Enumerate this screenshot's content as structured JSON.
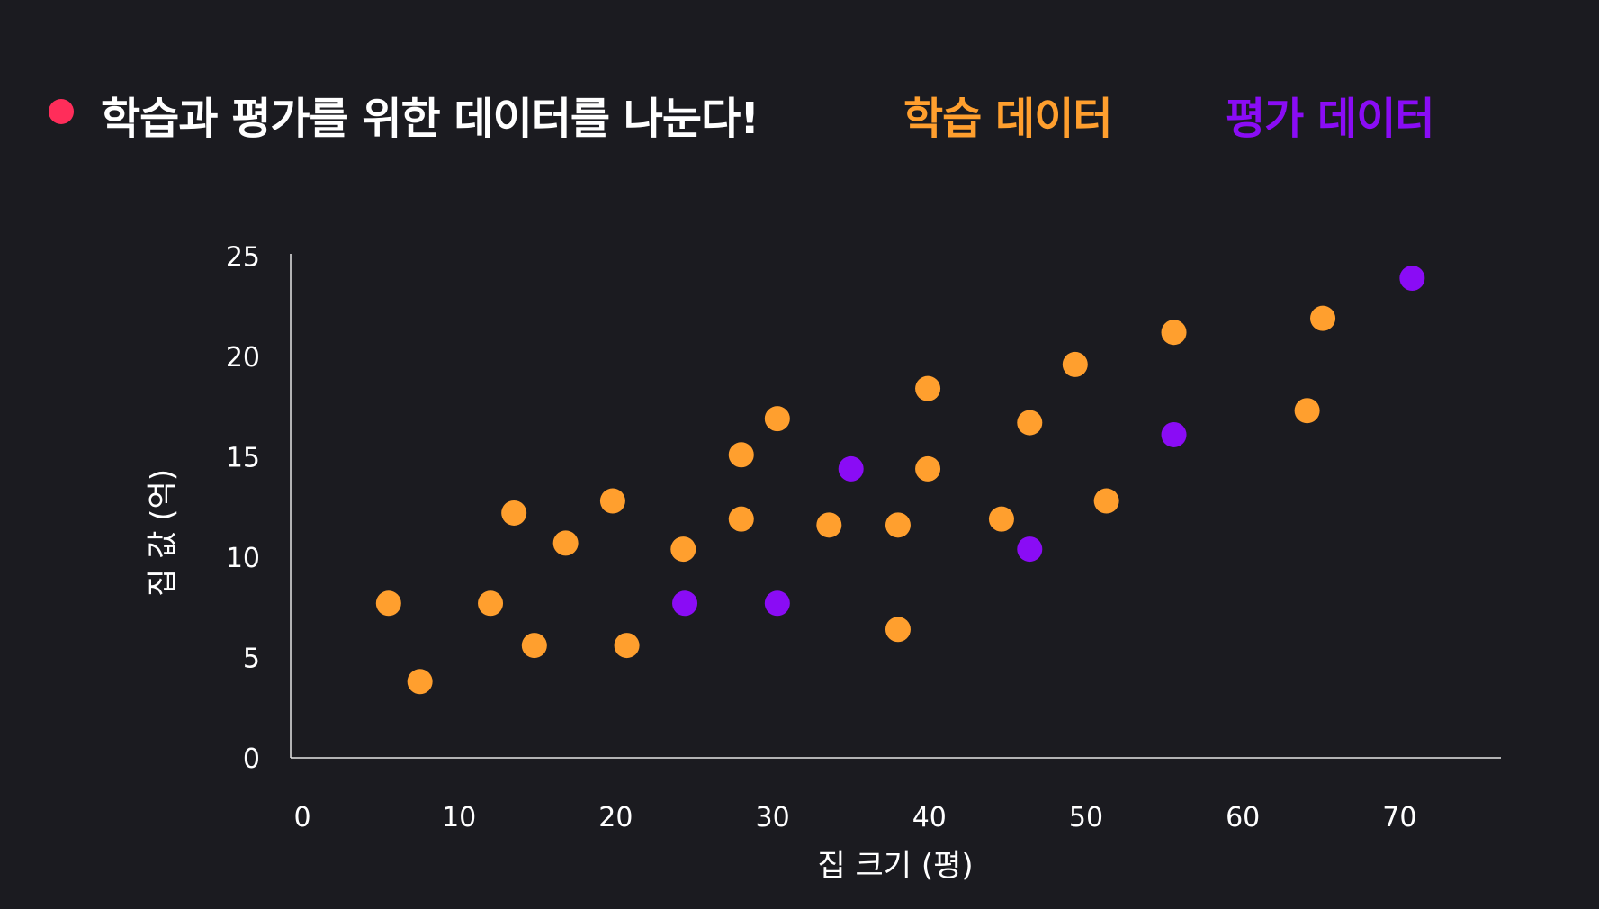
{
  "header": {
    "title": "학습과 평가를 위한 데이터를 나눈다!",
    "bullet_color": "#ff2d5a"
  },
  "chart_data": {
    "type": "scatter",
    "title": "학습과 평가를 위한 데이터를 나눈다!",
    "xlabel": "집 크기 (평)",
    "ylabel": "집 값 (억)",
    "xlim": [
      0,
      77
    ],
    "ylim": [
      0,
      25
    ],
    "x_ticks": [
      0,
      10,
      20,
      30,
      40,
      50,
      60,
      70
    ],
    "y_ticks": [
      0,
      5,
      10,
      15,
      20,
      25
    ],
    "grid": false,
    "legend_position": "top",
    "series": [
      {
        "name": "학습 데이터",
        "color": "#ff9f2e",
        "points": [
          [
            5.5,
            7.7
          ],
          [
            7.5,
            3.8
          ],
          [
            12,
            7.7
          ],
          [
            13.5,
            12.2
          ],
          [
            14.8,
            5.6
          ],
          [
            16.8,
            10.7
          ],
          [
            19.8,
            12.8
          ],
          [
            20.7,
            5.6
          ],
          [
            24.3,
            10.4
          ],
          [
            28,
            15.1
          ],
          [
            28,
            11.9
          ],
          [
            30.3,
            16.9
          ],
          [
            33.6,
            11.6
          ],
          [
            38,
            11.6
          ],
          [
            38,
            6.4
          ],
          [
            39.9,
            18.4
          ],
          [
            39.9,
            14.4
          ],
          [
            44.6,
            11.9
          ],
          [
            46.4,
            16.7
          ],
          [
            49.3,
            19.6
          ],
          [
            51.3,
            12.8
          ],
          [
            55.6,
            21.2
          ],
          [
            64.1,
            17.3
          ],
          [
            65.1,
            21.9
          ]
        ]
      },
      {
        "name": "평가 데이터",
        "color": "#8a0cf5",
        "points": [
          [
            24.4,
            7.7
          ],
          [
            30.3,
            7.7
          ],
          [
            35,
            14.4
          ],
          [
            46.4,
            10.4
          ],
          [
            55.6,
            16.1
          ],
          [
            70.8,
            23.9
          ]
        ]
      }
    ]
  }
}
